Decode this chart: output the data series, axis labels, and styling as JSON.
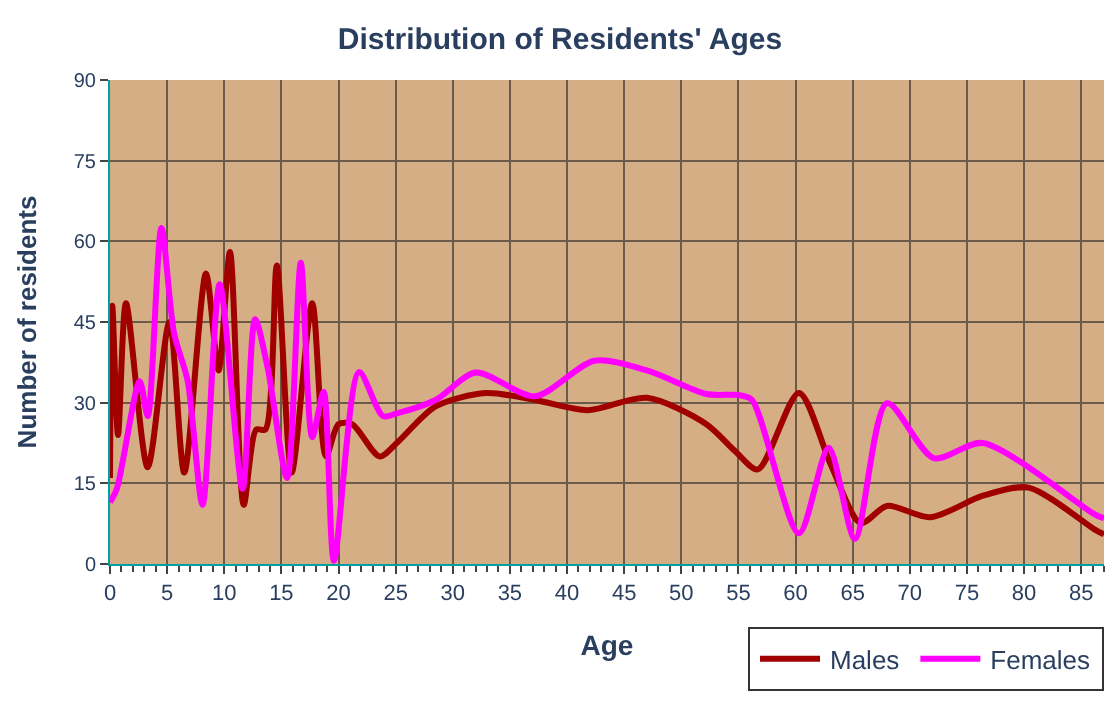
{
  "chart_data": {
    "type": "line",
    "title": "Distribution of Residents' Ages",
    "xlabel": "Age",
    "ylabel": "Number of residents",
    "xlim": [
      0,
      87
    ],
    "xticks": [
      0,
      5,
      10,
      15,
      20,
      25,
      30,
      35,
      40,
      45,
      50,
      55,
      60,
      65,
      70,
      75,
      80,
      85
    ],
    "ylim": [
      0,
      90
    ],
    "yticks": [
      0,
      15,
      30,
      45,
      60,
      75,
      90
    ],
    "grid": true,
    "legend": "bottom right",
    "marker": "none",
    "line_style": "solid",
    "series": [
      {
        "name": "Males",
        "color": "#a00000",
        "x": [
          0,
          0.2,
          0.7,
          1.4,
          3.3,
          5.2,
          6.5,
          8.4,
          9.5,
          10.5,
          11.7,
          12.8,
          13.6,
          14.6,
          15.9,
          17.7,
          18.9,
          20,
          21.2,
          23.6,
          25.1,
          28.5,
          32.9,
          37.2,
          41.8,
          47,
          52.2,
          54.7,
          56.7,
          60.3,
          63.1,
          65.7,
          68,
          71.8,
          76.4,
          80.4,
          86.2,
          87
        ],
        "values": [
          16,
          48,
          24,
          48.5,
          18,
          45,
          17,
          54,
          36,
          58,
          11,
          25,
          25,
          55.5,
          17,
          48.5,
          20,
          26,
          26,
          20,
          22.5,
          29.3,
          31.8,
          30.5,
          28.6,
          30.9,
          26,
          21,
          17.6,
          31.8,
          18.4,
          7.6,
          10.8,
          8.7,
          12.7,
          14.2,
          6.4,
          5.5
        ]
      },
      {
        "name": "Females",
        "color": "#ff00ff",
        "x": [
          0,
          0.6,
          2.6,
          3.3,
          4.5,
          5.6,
          6.8,
          8.1,
          9.6,
          11.6,
          12.7,
          13.8,
          15.5,
          16.7,
          17.7,
          18.7,
          19.6,
          21.8,
          23.9,
          25.1,
          28.5,
          32,
          37.2,
          42.4,
          47,
          52.2,
          55.1,
          56.2,
          60.3,
          62.9,
          65.2,
          68,
          72.1,
          76.4,
          86.2,
          87
        ],
        "values": [
          11.5,
          14,
          34,
          27.5,
          62.5,
          43,
          34,
          11,
          52,
          14,
          45.5,
          36.5,
          16,
          56,
          23.6,
          32,
          0.6,
          35.7,
          27.5,
          28,
          30.5,
          35.6,
          31.2,
          37.8,
          36,
          31.6,
          31.4,
          30.5,
          5.7,
          21.6,
          4.7,
          29.9,
          19.7,
          22.5,
          9.2,
          8.5
        ]
      }
    ]
  }
}
